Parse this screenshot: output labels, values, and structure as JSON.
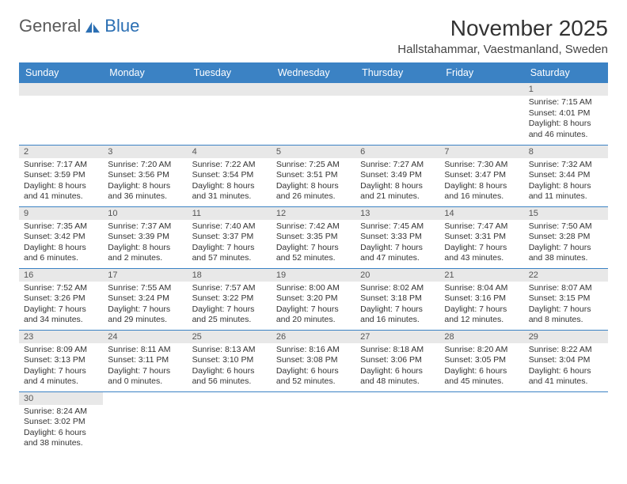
{
  "logo": {
    "part1": "General",
    "part2": "Blue",
    "color1": "#5a5a5a",
    "color2": "#2b6fb3"
  },
  "title": "November 2025",
  "location": "Hallstahammar, Vaestmanland, Sweden",
  "header_bg": "#3b82c4",
  "header_fg": "#ffffff",
  "dayhead_bg": "#e8e8e8",
  "border_color": "#3b82c4",
  "days_of_week": [
    "Sunday",
    "Monday",
    "Tuesday",
    "Wednesday",
    "Thursday",
    "Friday",
    "Saturday"
  ],
  "weeks": [
    [
      null,
      null,
      null,
      null,
      null,
      null,
      {
        "n": "1",
        "sunrise": "Sunrise: 7:15 AM",
        "sunset": "Sunset: 4:01 PM",
        "daylight": "Daylight: 8 hours and 46 minutes."
      }
    ],
    [
      {
        "n": "2",
        "sunrise": "Sunrise: 7:17 AM",
        "sunset": "Sunset: 3:59 PM",
        "daylight": "Daylight: 8 hours and 41 minutes."
      },
      {
        "n": "3",
        "sunrise": "Sunrise: 7:20 AM",
        "sunset": "Sunset: 3:56 PM",
        "daylight": "Daylight: 8 hours and 36 minutes."
      },
      {
        "n": "4",
        "sunrise": "Sunrise: 7:22 AM",
        "sunset": "Sunset: 3:54 PM",
        "daylight": "Daylight: 8 hours and 31 minutes."
      },
      {
        "n": "5",
        "sunrise": "Sunrise: 7:25 AM",
        "sunset": "Sunset: 3:51 PM",
        "daylight": "Daylight: 8 hours and 26 minutes."
      },
      {
        "n": "6",
        "sunrise": "Sunrise: 7:27 AM",
        "sunset": "Sunset: 3:49 PM",
        "daylight": "Daylight: 8 hours and 21 minutes."
      },
      {
        "n": "7",
        "sunrise": "Sunrise: 7:30 AM",
        "sunset": "Sunset: 3:47 PM",
        "daylight": "Daylight: 8 hours and 16 minutes."
      },
      {
        "n": "8",
        "sunrise": "Sunrise: 7:32 AM",
        "sunset": "Sunset: 3:44 PM",
        "daylight": "Daylight: 8 hours and 11 minutes."
      }
    ],
    [
      {
        "n": "9",
        "sunrise": "Sunrise: 7:35 AM",
        "sunset": "Sunset: 3:42 PM",
        "daylight": "Daylight: 8 hours and 6 minutes."
      },
      {
        "n": "10",
        "sunrise": "Sunrise: 7:37 AM",
        "sunset": "Sunset: 3:39 PM",
        "daylight": "Daylight: 8 hours and 2 minutes."
      },
      {
        "n": "11",
        "sunrise": "Sunrise: 7:40 AM",
        "sunset": "Sunset: 3:37 PM",
        "daylight": "Daylight: 7 hours and 57 minutes."
      },
      {
        "n": "12",
        "sunrise": "Sunrise: 7:42 AM",
        "sunset": "Sunset: 3:35 PM",
        "daylight": "Daylight: 7 hours and 52 minutes."
      },
      {
        "n": "13",
        "sunrise": "Sunrise: 7:45 AM",
        "sunset": "Sunset: 3:33 PM",
        "daylight": "Daylight: 7 hours and 47 minutes."
      },
      {
        "n": "14",
        "sunrise": "Sunrise: 7:47 AM",
        "sunset": "Sunset: 3:31 PM",
        "daylight": "Daylight: 7 hours and 43 minutes."
      },
      {
        "n": "15",
        "sunrise": "Sunrise: 7:50 AM",
        "sunset": "Sunset: 3:28 PM",
        "daylight": "Daylight: 7 hours and 38 minutes."
      }
    ],
    [
      {
        "n": "16",
        "sunrise": "Sunrise: 7:52 AM",
        "sunset": "Sunset: 3:26 PM",
        "daylight": "Daylight: 7 hours and 34 minutes."
      },
      {
        "n": "17",
        "sunrise": "Sunrise: 7:55 AM",
        "sunset": "Sunset: 3:24 PM",
        "daylight": "Daylight: 7 hours and 29 minutes."
      },
      {
        "n": "18",
        "sunrise": "Sunrise: 7:57 AM",
        "sunset": "Sunset: 3:22 PM",
        "daylight": "Daylight: 7 hours and 25 minutes."
      },
      {
        "n": "19",
        "sunrise": "Sunrise: 8:00 AM",
        "sunset": "Sunset: 3:20 PM",
        "daylight": "Daylight: 7 hours and 20 minutes."
      },
      {
        "n": "20",
        "sunrise": "Sunrise: 8:02 AM",
        "sunset": "Sunset: 3:18 PM",
        "daylight": "Daylight: 7 hours and 16 minutes."
      },
      {
        "n": "21",
        "sunrise": "Sunrise: 8:04 AM",
        "sunset": "Sunset: 3:16 PM",
        "daylight": "Daylight: 7 hours and 12 minutes."
      },
      {
        "n": "22",
        "sunrise": "Sunrise: 8:07 AM",
        "sunset": "Sunset: 3:15 PM",
        "daylight": "Daylight: 7 hours and 8 minutes."
      }
    ],
    [
      {
        "n": "23",
        "sunrise": "Sunrise: 8:09 AM",
        "sunset": "Sunset: 3:13 PM",
        "daylight": "Daylight: 7 hours and 4 minutes."
      },
      {
        "n": "24",
        "sunrise": "Sunrise: 8:11 AM",
        "sunset": "Sunset: 3:11 PM",
        "daylight": "Daylight: 7 hours and 0 minutes."
      },
      {
        "n": "25",
        "sunrise": "Sunrise: 8:13 AM",
        "sunset": "Sunset: 3:10 PM",
        "daylight": "Daylight: 6 hours and 56 minutes."
      },
      {
        "n": "26",
        "sunrise": "Sunrise: 8:16 AM",
        "sunset": "Sunset: 3:08 PM",
        "daylight": "Daylight: 6 hours and 52 minutes."
      },
      {
        "n": "27",
        "sunrise": "Sunrise: 8:18 AM",
        "sunset": "Sunset: 3:06 PM",
        "daylight": "Daylight: 6 hours and 48 minutes."
      },
      {
        "n": "28",
        "sunrise": "Sunrise: 8:20 AM",
        "sunset": "Sunset: 3:05 PM",
        "daylight": "Daylight: 6 hours and 45 minutes."
      },
      {
        "n": "29",
        "sunrise": "Sunrise: 8:22 AM",
        "sunset": "Sunset: 3:04 PM",
        "daylight": "Daylight: 6 hours and 41 minutes."
      }
    ],
    [
      {
        "n": "30",
        "sunrise": "Sunrise: 8:24 AM",
        "sunset": "Sunset: 3:02 PM",
        "daylight": "Daylight: 6 hours and 38 minutes."
      },
      null,
      null,
      null,
      null,
      null,
      null
    ]
  ]
}
